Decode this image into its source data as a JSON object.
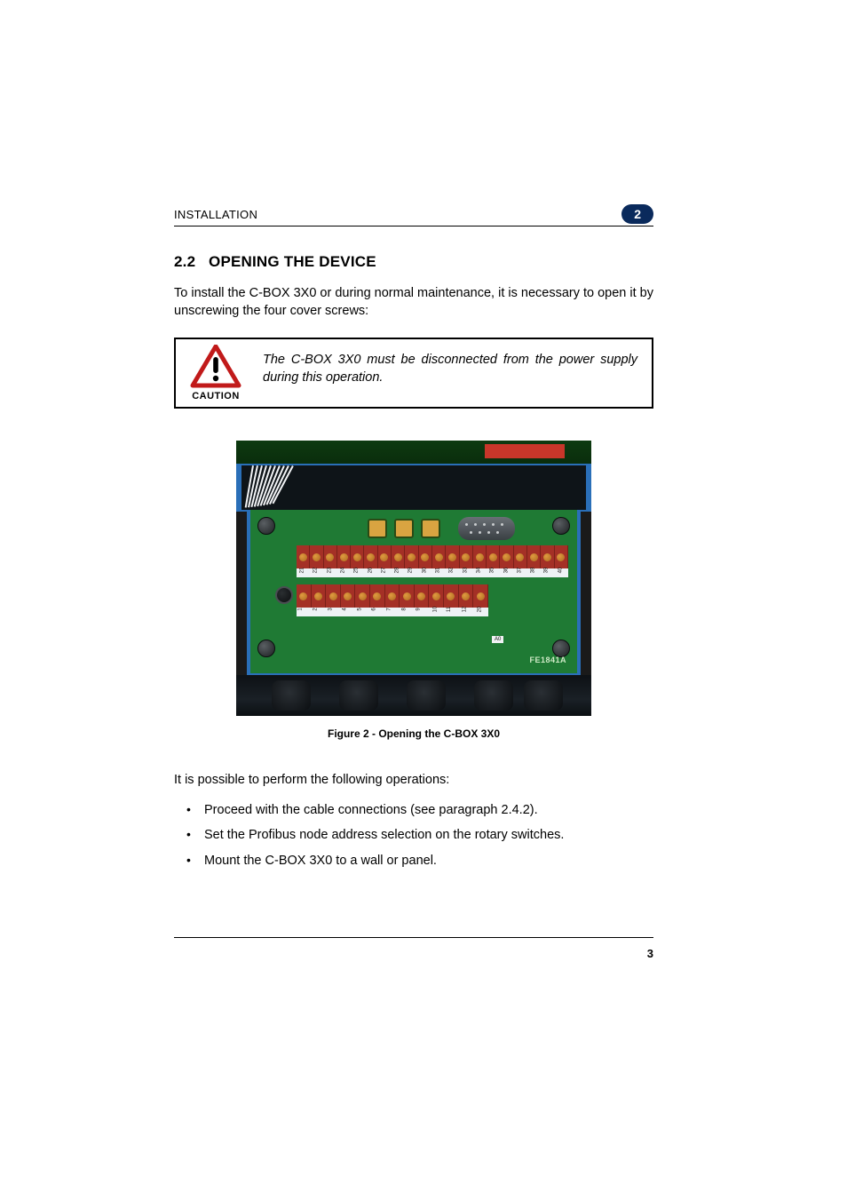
{
  "header": {
    "section_label": "INSTALLATION",
    "chapter_number": "2"
  },
  "section": {
    "number": "2.2",
    "title": "OPENING THE DEVICE"
  },
  "intro_paragraph": "To install the C-BOX 3X0 or during normal maintenance, it is necessary to open it by unscrewing the four cover screws:",
  "caution": {
    "label": "CAUTION",
    "text": "The C-BOX 3X0 must be disconnected from the power supply during this operation.",
    "triangle_border_color": "#c11a1a",
    "triangle_fill_color": "#ffffff",
    "bang_color": "#000000"
  },
  "figure": {
    "caption": "Figure 2 - Opening the C-BOX 3X0",
    "background_color": "#2a6fb8",
    "board_color": "#1f7a34",
    "terminal_color": "#a43026",
    "screw_hole_color": "#e09a40",
    "housing_color": "#1a1a1a",
    "led_color": "#d9a441",
    "label_strip_color": "#eef2f5",
    "part_label": "FE1841A",
    "silk_text": "",
    "small_label_a0": "A0",
    "terminal_row1_numbers": [
      "21",
      "22",
      "23",
      "24",
      "25",
      "26",
      "27",
      "28",
      "29",
      "30",
      "31",
      "32",
      "33",
      "34",
      "35",
      "36",
      "37",
      "38",
      "39",
      "40"
    ],
    "terminal_row2_numbers": [
      "1",
      "2",
      "3",
      "4",
      "5",
      "6",
      "7",
      "8",
      "9",
      "10",
      "11",
      "12",
      "20"
    ],
    "db9_pin_count": 9,
    "wire_count": 10
  },
  "operations_intro": "It is possible to perform the following operations:",
  "operations": [
    "Proceed with the cable connections (see paragraph 2.4.2).",
    "Set the Profibus node address selection on the rotary switches.",
    "Mount the C-BOX 3X0 to a wall or panel."
  ],
  "footer": {
    "page_number": "3"
  }
}
